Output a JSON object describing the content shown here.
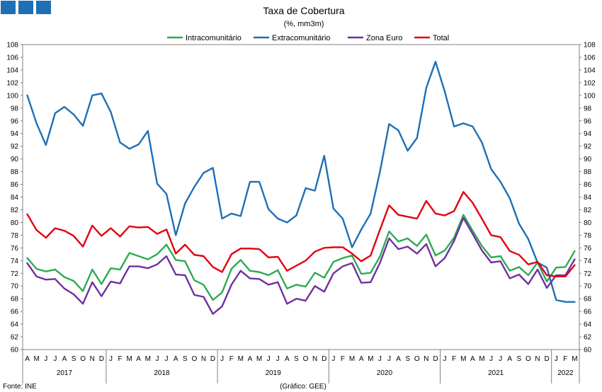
{
  "header": {
    "logo_color": "#1f6fb5"
  },
  "footer": {
    "source": "Fonte: INE",
    "credit": "(Gráfico: GEE)"
  },
  "chart_data": {
    "type": "line",
    "title": "Taxa de Cobertura",
    "subtitle": "(%, mm3m)",
    "ylim": [
      60,
      108
    ],
    "y_ticks": [
      60,
      62,
      64,
      66,
      68,
      70,
      72,
      74,
      76,
      78,
      80,
      82,
      84,
      86,
      88,
      90,
      92,
      94,
      96,
      98,
      100,
      102,
      104,
      106,
      108
    ],
    "legend_position": "top-center",
    "grid": false,
    "x": [
      "A",
      "M",
      "J",
      "J",
      "A",
      "S",
      "O",
      "N",
      "D",
      "J",
      "F",
      "M",
      "A",
      "M",
      "J",
      "J",
      "A",
      "S",
      "O",
      "N",
      "D",
      "J",
      "F",
      "M",
      "A",
      "M",
      "J",
      "J",
      "A",
      "S",
      "O",
      "N",
      "D",
      "J",
      "F",
      "M",
      "A",
      "M",
      "J",
      "J",
      "A",
      "S",
      "O",
      "N",
      "D",
      "J",
      "F",
      "M",
      "A",
      "M",
      "J",
      "J",
      "A",
      "S",
      "O",
      "N",
      "D",
      "J",
      "F",
      "M"
    ],
    "years": [
      {
        "label": "2017",
        "start": 0,
        "end": 8
      },
      {
        "label": "2018",
        "start": 9,
        "end": 20
      },
      {
        "label": "2019",
        "start": 21,
        "end": 32
      },
      {
        "label": "2020",
        "start": 33,
        "end": 44
      },
      {
        "label": "2021",
        "start": 45,
        "end": 56
      },
      {
        "label": "2022",
        "start": 57,
        "end": 59
      }
    ],
    "series": [
      {
        "name": "Intracomunitário",
        "color": "#2eaa52",
        "values": [
          74.4,
          72.7,
          72.3,
          72.6,
          71.4,
          70.8,
          69.2,
          72.6,
          70.3,
          72.8,
          72.6,
          75.2,
          74.7,
          74.2,
          75.0,
          76.5,
          74.1,
          73.9,
          70.9,
          70.2,
          67.8,
          69.0,
          72.7,
          74.1,
          72.4,
          72.2,
          71.7,
          72.5,
          69.6,
          70.2,
          69.9,
          72.1,
          71.3,
          73.8,
          74.4,
          74.8,
          71.9,
          72.1,
          74.6,
          78.6,
          77.0,
          77.5,
          76.3,
          78.1,
          74.8,
          75.6,
          77.6,
          81.2,
          78.7,
          76.3,
          74.5,
          74.7,
          72.4,
          73.0,
          71.7,
          73.7,
          70.7,
          72.9,
          73.0,
          75.5
        ]
      },
      {
        "name": "Extracomunitário",
        "color": "#1f6fb5",
        "values": [
          100.0,
          95.6,
          92.2,
          97.2,
          98.2,
          97.0,
          95.2,
          100.0,
          100.3,
          97.4,
          92.6,
          91.6,
          92.3,
          94.4,
          86.1,
          84.5,
          78.0,
          83.0,
          85.6,
          87.8,
          88.6,
          80.6,
          81.4,
          81.0,
          86.4,
          86.4,
          82.1,
          80.6,
          80.0,
          81.1,
          85.4,
          85.0,
          90.5,
          82.2,
          80.6,
          76.1,
          78.9,
          81.4,
          87.9,
          95.5,
          94.5,
          91.3,
          93.3,
          101.2,
          105.3,
          100.6,
          95.1,
          95.6,
          95.1,
          92.6,
          88.4,
          86.4,
          83.8,
          79.8,
          77.4,
          73.7,
          72.9,
          67.8,
          67.5,
          67.5
        ]
      },
      {
        "name": "Zona Euro",
        "color": "#7030a0",
        "values": [
          73.6,
          71.5,
          71.0,
          71.1,
          69.6,
          68.7,
          67.2,
          70.6,
          68.4,
          70.7,
          70.4,
          73.1,
          73.1,
          72.8,
          73.4,
          74.7,
          71.8,
          71.7,
          68.6,
          68.3,
          65.6,
          66.8,
          70.2,
          72.4,
          71.2,
          71.1,
          70.2,
          70.6,
          67.2,
          68.0,
          67.7,
          70.0,
          69.1,
          72.0,
          73.1,
          73.6,
          70.5,
          70.6,
          73.6,
          77.5,
          75.8,
          76.2,
          75.1,
          76.6,
          73.1,
          74.4,
          77.1,
          80.7,
          78.2,
          75.6,
          73.7,
          73.9,
          71.2,
          71.8,
          70.3,
          72.6,
          69.7,
          71.7,
          71.7,
          74.2
        ]
      },
      {
        "name": "Total",
        "color": "#e3000f",
        "values": [
          81.3,
          78.8,
          77.6,
          79.1,
          78.7,
          77.9,
          76.2,
          79.5,
          77.9,
          79.1,
          77.8,
          79.4,
          79.2,
          79.3,
          78.2,
          78.9,
          75.1,
          76.5,
          74.9,
          74.7,
          73.0,
          72.2,
          75.0,
          75.9,
          75.9,
          75.8,
          74.5,
          74.6,
          72.4,
          73.2,
          74.0,
          75.4,
          76.0,
          76.1,
          76.1,
          75.1,
          73.9,
          74.8,
          78.8,
          82.7,
          81.2,
          80.9,
          80.6,
          83.4,
          81.4,
          81.1,
          81.8,
          84.8,
          83.1,
          80.6,
          78.0,
          77.7,
          75.5,
          74.9,
          73.4,
          73.8,
          71.7,
          71.5,
          71.5,
          73.3
        ]
      }
    ]
  }
}
